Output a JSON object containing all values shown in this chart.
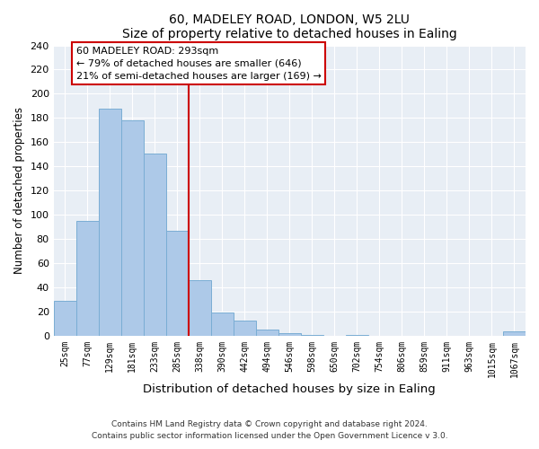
{
  "title": "60, MADELEY ROAD, LONDON, W5 2LU",
  "subtitle": "Size of property relative to detached houses in Ealing",
  "xlabel": "Distribution of detached houses by size in Ealing",
  "ylabel": "Number of detached properties",
  "bar_labels": [
    "25sqm",
    "77sqm",
    "129sqm",
    "181sqm",
    "233sqm",
    "285sqm",
    "338sqm",
    "390sqm",
    "442sqm",
    "494sqm",
    "546sqm",
    "598sqm",
    "650sqm",
    "702sqm",
    "754sqm",
    "806sqm",
    "859sqm",
    "911sqm",
    "963sqm",
    "1015sqm",
    "1067sqm"
  ],
  "bar_values": [
    29,
    95,
    188,
    178,
    151,
    87,
    46,
    19,
    13,
    5,
    2,
    1,
    0,
    1,
    0,
    0,
    0,
    0,
    0,
    0,
    4
  ],
  "bar_color": "#adc9e8",
  "bar_edge_color": "#7aadd4",
  "vline_x_index": 5,
  "vline_color": "#cc0000",
  "ylim": [
    0,
    240
  ],
  "yticks": [
    0,
    20,
    40,
    60,
    80,
    100,
    120,
    140,
    160,
    180,
    200,
    220,
    240
  ],
  "annotation_title": "60 MADELEY ROAD: 293sqm",
  "annotation_line1": "← 79% of detached houses are smaller (646)",
  "annotation_line2": "21% of semi-detached houses are larger (169) →",
  "annotation_box_color": "#ffffff",
  "annotation_box_edge": "#cc0000",
  "footer1": "Contains HM Land Registry data © Crown copyright and database right 2024.",
  "footer2": "Contains public sector information licensed under the Open Government Licence v 3.0.",
  "background_color": "#e8eef5",
  "plot_background": "#ffffff",
  "grid_color": "#ffffff"
}
